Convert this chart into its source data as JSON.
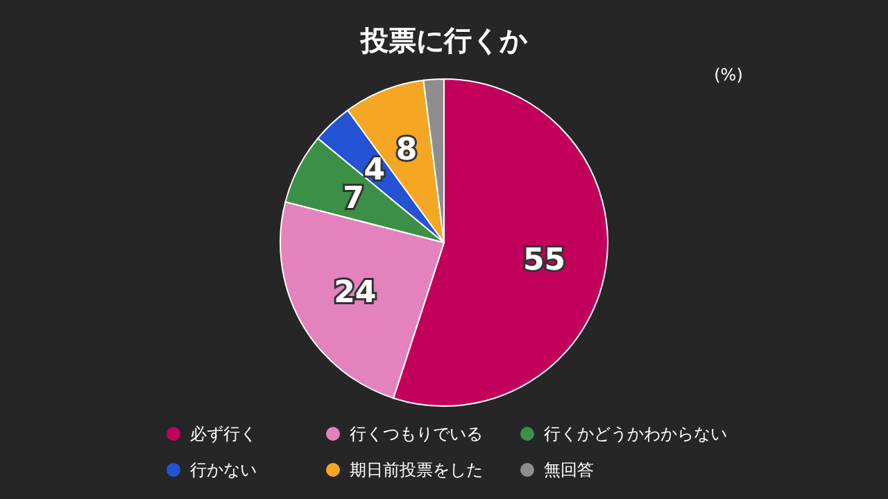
{
  "chart_data": {
    "type": "pie",
    "title": "投票に行くか",
    "categories": [
      "必ず行く",
      "行くつもりでいる",
      "行くかどうかわからない",
      "行かない",
      "期日前投票をした",
      "無回答"
    ],
    "values": [
      55,
      24,
      7,
      4,
      8,
      2
    ],
    "colors": [
      "#c2005c",
      "#e382bd",
      "#3b8f47",
      "#2453d4",
      "#f5a623",
      "#8e8e8e"
    ],
    "value_labels": [
      "55",
      "24",
      "7",
      "4",
      "8",
      null
    ],
    "annotations": [
      "(%)"
    ],
    "legend": "bottom"
  }
}
